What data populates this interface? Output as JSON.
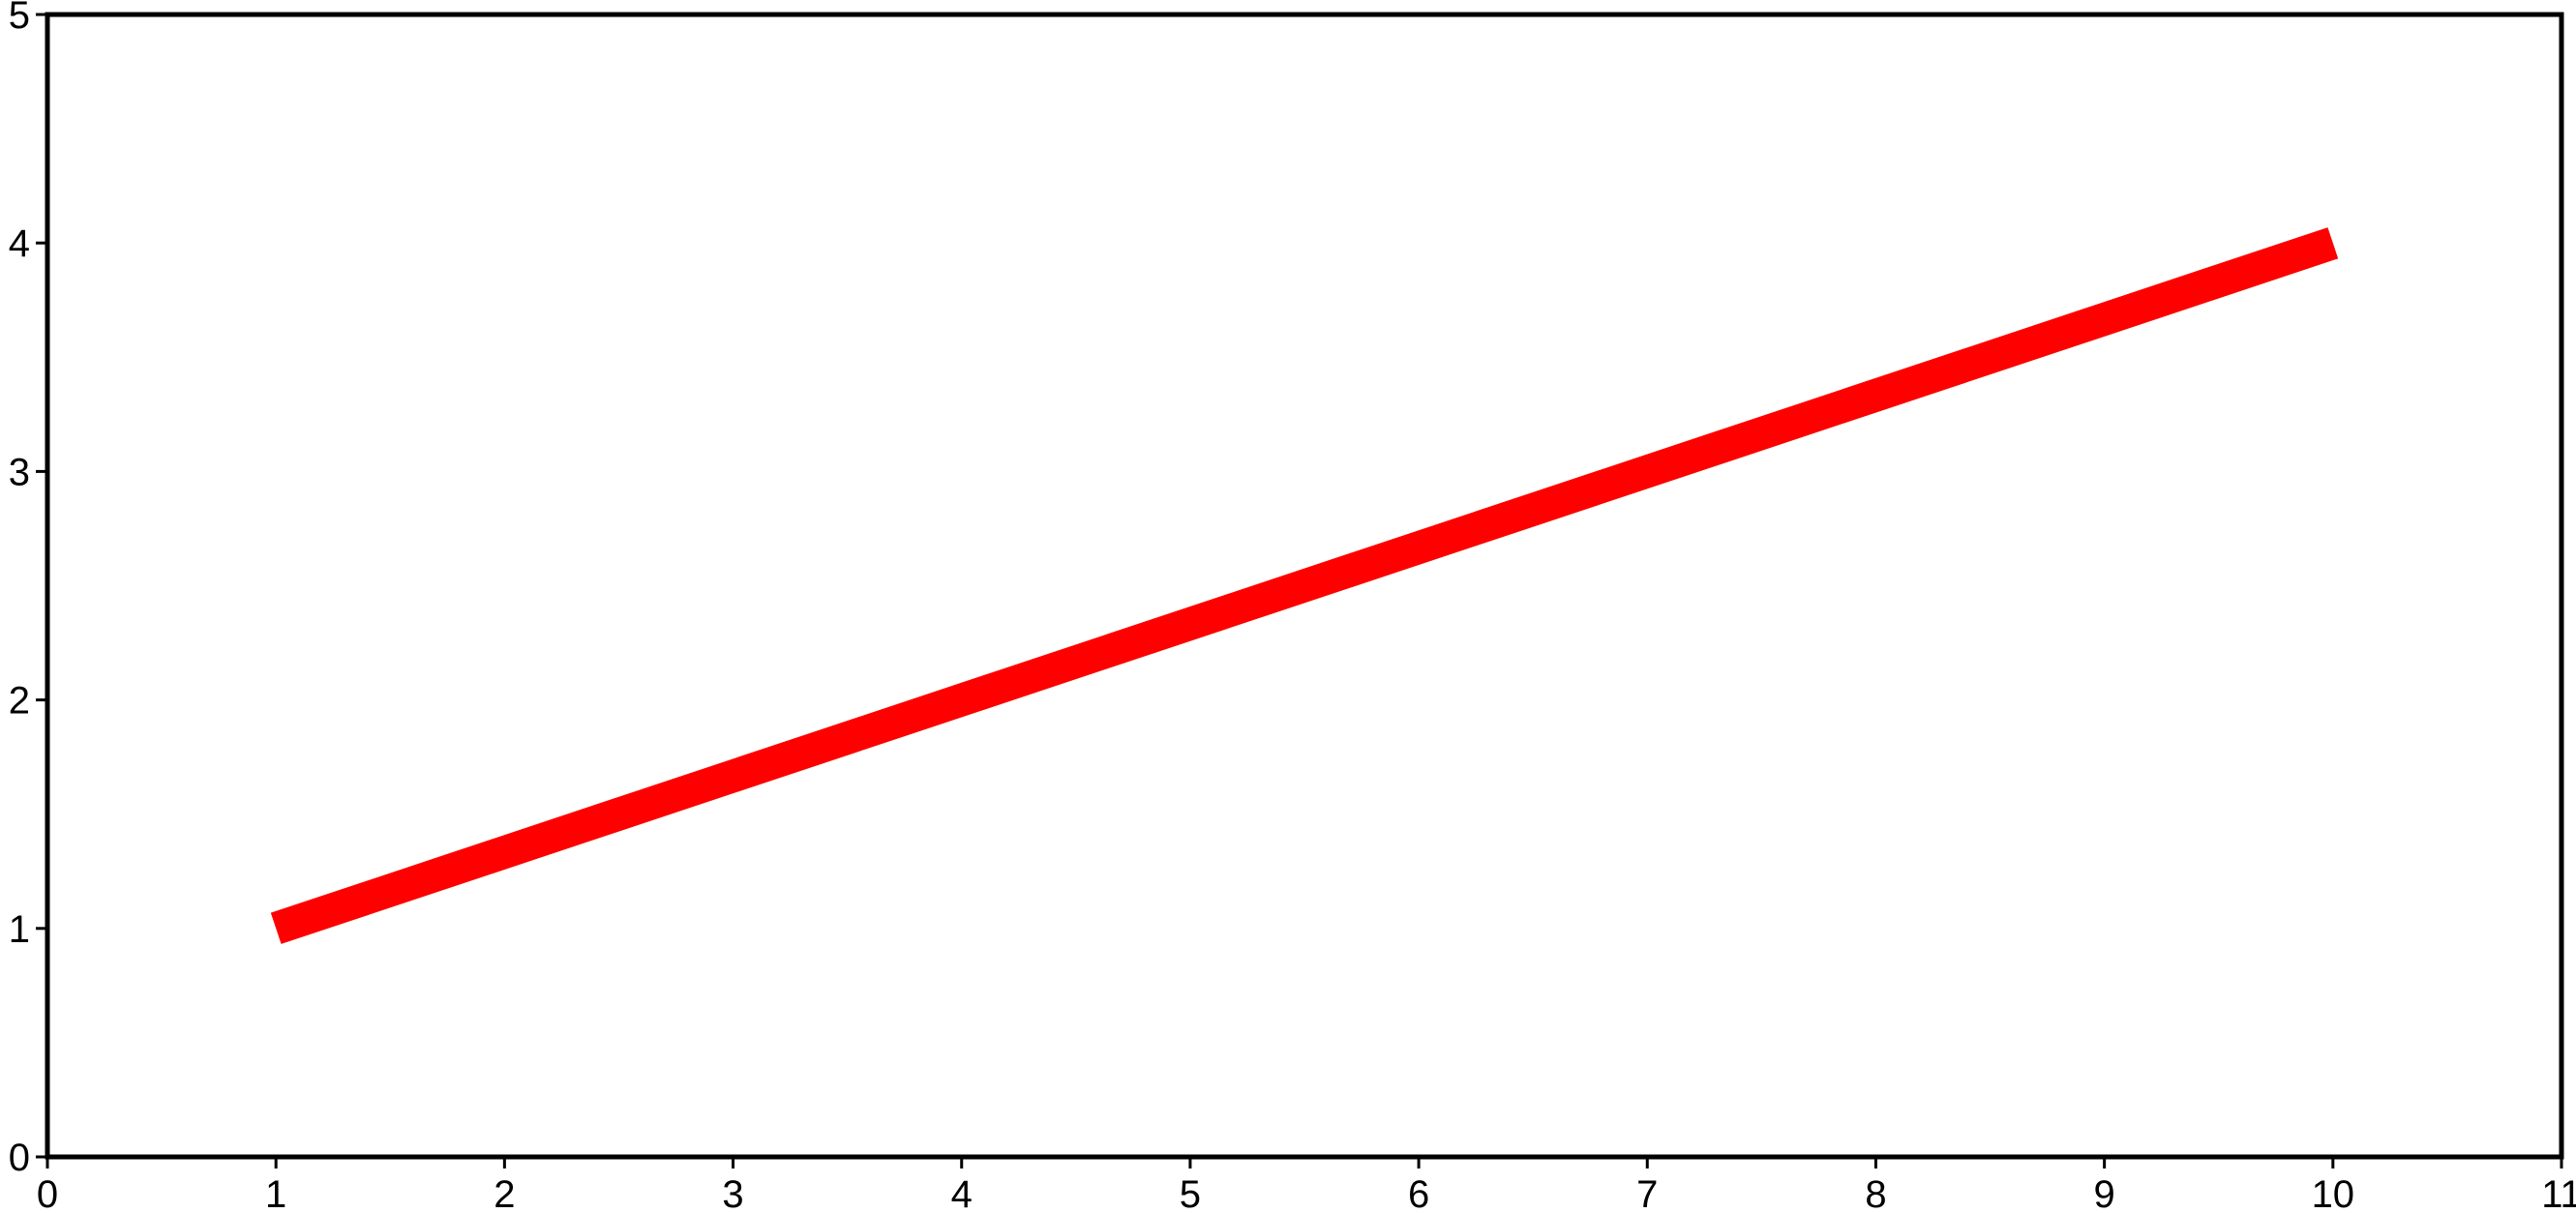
{
  "chart_data": {
    "type": "line",
    "title": "",
    "xlabel": "",
    "ylabel": "",
    "xlim": [
      0,
      11
    ],
    "ylim": [
      0,
      5
    ],
    "x_ticks": [
      0,
      1,
      2,
      3,
      4,
      5,
      6,
      7,
      8,
      9,
      10,
      11
    ],
    "y_ticks": [
      0,
      1,
      2,
      3,
      4,
      5
    ],
    "grid": false,
    "series": [
      {
        "x": [
          1,
          10
        ],
        "y": [
          1,
          4
        ],
        "color": "#ff0000"
      }
    ]
  }
}
